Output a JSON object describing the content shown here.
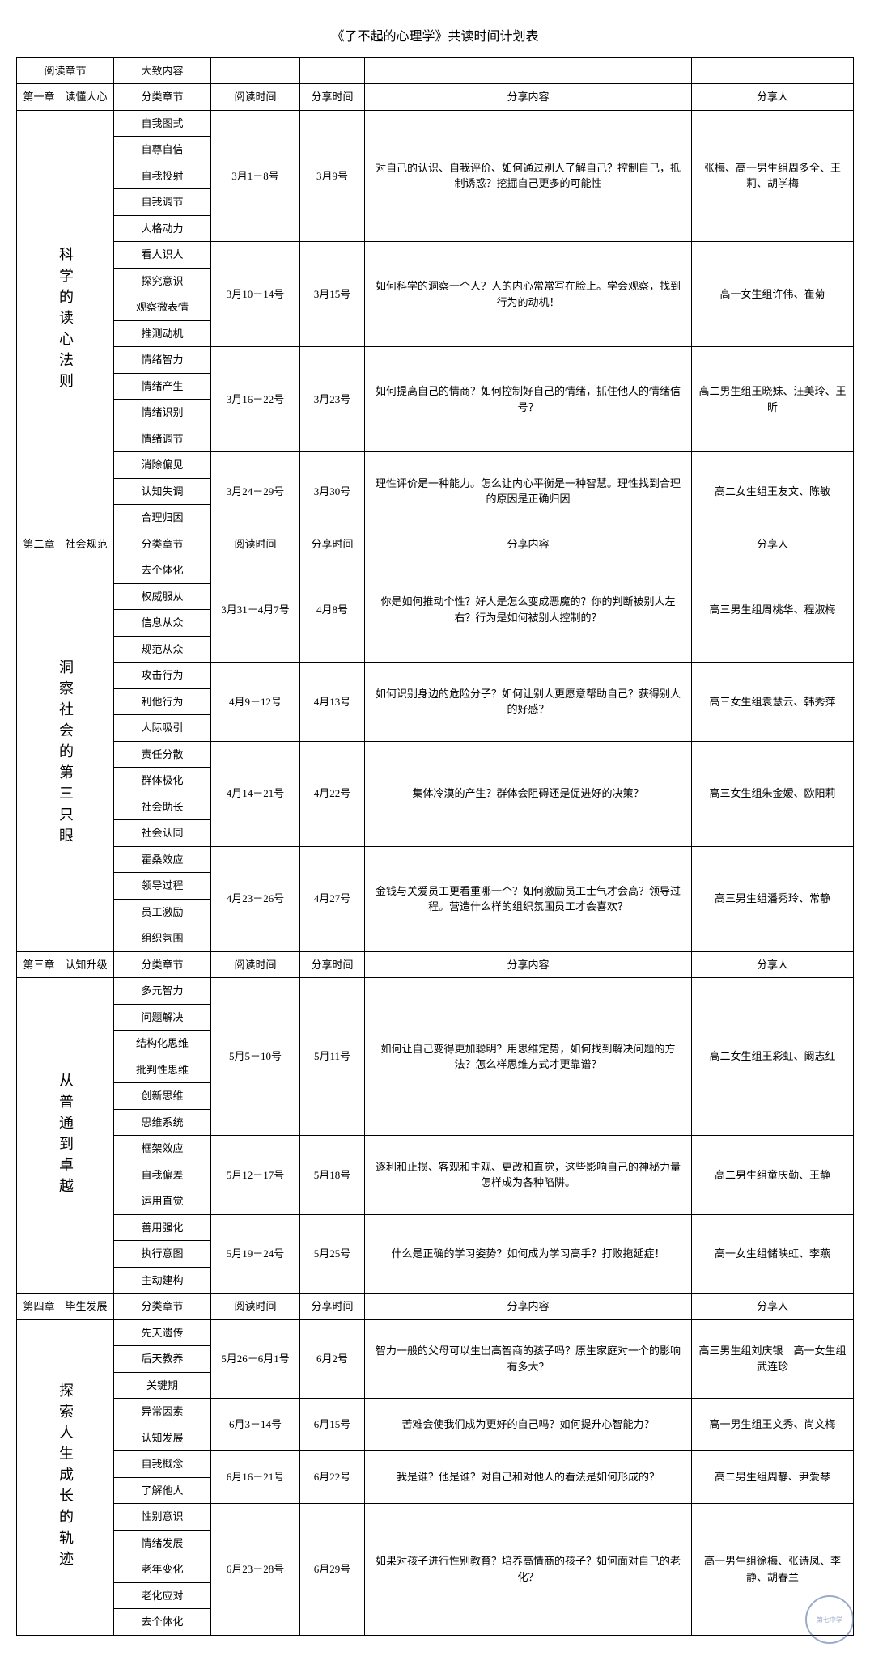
{
  "title": "《了不起的心理学》共读时间计划表",
  "headers": {
    "chapter": "阅读章节",
    "outline": "大致内容",
    "sub": "分类章节",
    "readtime": "阅读时间",
    "sharetime": "分享时间",
    "content": "分享内容",
    "person": "分享人"
  },
  "chapter1": {
    "title": "第一章　读懂人心",
    "section": "科学的读心法则",
    "groups": [
      {
        "subs": [
          "自我图式",
          "自尊自信",
          "自我投射",
          "自我调节",
          "人格动力"
        ],
        "readtime": "3月1－8号",
        "sharetime": "3月9号",
        "content": "对自己的认识、自我评价、如何通过别人了解自己？控制自己，抵制诱惑？挖掘自己更多的可能性",
        "person": "张梅、高一男生组周多全、王莉、胡学梅"
      },
      {
        "subs": [
          "看人识人",
          "探究意识",
          "观察微表情",
          "推测动机"
        ],
        "readtime": "3月10－14号",
        "sharetime": "3月15号",
        "content": "如何科学的洞察一个人？人的内心常常写在脸上。学会观察，找到行为的动机！",
        "person": "高一女生组许伟、崔菊"
      },
      {
        "subs": [
          "情绪智力",
          "情绪产生",
          "情绪识别",
          "情绪调节"
        ],
        "readtime": "3月16－22号",
        "sharetime": "3月23号",
        "content": "如何提高自己的情商？如何控制好自己的情绪，抓住他人的情绪信号？",
        "person": "高二男生组王晓妹、汪美玲、王昕"
      },
      {
        "subs": [
          "消除偏见",
          "认知失调",
          "合理归因"
        ],
        "readtime": "3月24－29号",
        "sharetime": "3月30号",
        "content": "理性评价是一种能力。怎么让内心平衡是一种智慧。理性找到合理的原因是正确归因",
        "person": "高二女生组王友文、陈敏"
      }
    ]
  },
  "chapter2": {
    "title": "第二章　社会规范",
    "section": "洞察社会的第三只眼",
    "groups": [
      {
        "subs": [
          "去个体化",
          "权威服从",
          "信息从众",
          "规范从众"
        ],
        "readtime": "3月31－4月7号",
        "sharetime": "4月8号",
        "content": "你是如何推动个性？好人是怎么变成恶魔的？你的判断被别人左右？行为是如何被别人控制的？",
        "person": "高三男生组周桃华、程淑梅"
      },
      {
        "subs": [
          "攻击行为",
          "利他行为",
          "人际吸引"
        ],
        "readtime": "4月9－12号",
        "sharetime": "4月13号",
        "content": "如何识别身边的危险分子？如何让别人更愿意帮助自己？获得别人的好感？",
        "person": "高三女生组袁慧云、韩秀萍"
      },
      {
        "subs": [
          "责任分散",
          "群体极化",
          "社会助长",
          "社会认同"
        ],
        "readtime": "4月14－21号",
        "sharetime": "4月22号",
        "content": "集体冷漠的产生？群体会阻碍还是促进好的决策？",
        "person": "高三女生组朱金嫒、欧阳莉"
      },
      {
        "subs": [
          "霍桑效应",
          "领导过程",
          "员工激励",
          "组织氛围"
        ],
        "readtime": "4月23－26号",
        "sharetime": "4月27号",
        "content": "金钱与关爱员工更看重哪一个？如何激励员工士气才会高？领导过程。营造什么样的组织氛围员工才会喜欢？",
        "person": "高三男生组潘秀玲、常静"
      }
    ]
  },
  "chapter3": {
    "title": "第三章　认知升级",
    "section": "从普通到卓越",
    "groups": [
      {
        "subs": [
          "多元智力",
          "问题解决",
          "结构化思维",
          "批判性思维",
          "创新思维",
          "思维系统"
        ],
        "readtime": "5月5－10号",
        "sharetime": "5月11号",
        "content": "如何让自己变得更加聪明？用思维定势，如何找到解决问题的方法？怎么样思维方式才更靠谱？",
        "person": "高二女生组王彩虹、阚志红"
      },
      {
        "subs": [
          "框架效应",
          "自我偏差",
          "运用直觉"
        ],
        "readtime": "5月12－17号",
        "sharetime": "5月18号",
        "content": "逐利和止损、客观和主观、更改和直觉，这些影响自己的神秘力量怎样成为各种陷阱。",
        "person": "高二男生组童庆勤、王静"
      },
      {
        "subs": [
          "善用强化",
          "执行意图",
          "主动建构"
        ],
        "readtime": "5月19－24号",
        "sharetime": "5月25号",
        "content": "什么是正确的学习姿势？如何成为学习高手？打败拖延症！",
        "person": "高一女生组储映虹、李燕"
      }
    ]
  },
  "chapter4": {
    "title": "第四章　毕生发展",
    "section": "探索人生成长的轨迹",
    "groups": [
      {
        "subs": [
          "先天遗传",
          "后天教养",
          "关键期"
        ],
        "readtime": "5月26－6月1号",
        "sharetime": "6月2号",
        "content": "智力一般的父母可以生出高智商的孩子吗？原生家庭对一个的影响有多大？",
        "person": "高三男生组刘庆银　高一女生组武连珍"
      },
      {
        "subs": [
          "异常因素",
          "认知发展"
        ],
        "readtime": "6月3－14号",
        "sharetime": "6月15号",
        "content": "苦难会使我们成为更好的自己吗？如何提升心智能力？",
        "person": "高一男生组王文秀、尚文梅"
      },
      {
        "subs": [
          "自我概念",
          "了解他人"
        ],
        "readtime": "6月16－21号",
        "sharetime": "6月22号",
        "content": "我是谁？他是谁？对自己和对他人的看法是如何形成的？",
        "person": "高二男生组周静、尹爱琴"
      },
      {
        "subs": [
          "性别意识",
          "情绪发展",
          "老年变化",
          "老化应对",
          "去个体化"
        ],
        "readtime": "6月23－28号",
        "sharetime": "6月29号",
        "content": "如果对孩子进行性别教育？培养高情商的孩子？如何面对自己的老化？",
        "person": "高一男生组徐梅、张诗凤、李静、胡春兰"
      }
    ]
  },
  "watermark": "第七中学"
}
